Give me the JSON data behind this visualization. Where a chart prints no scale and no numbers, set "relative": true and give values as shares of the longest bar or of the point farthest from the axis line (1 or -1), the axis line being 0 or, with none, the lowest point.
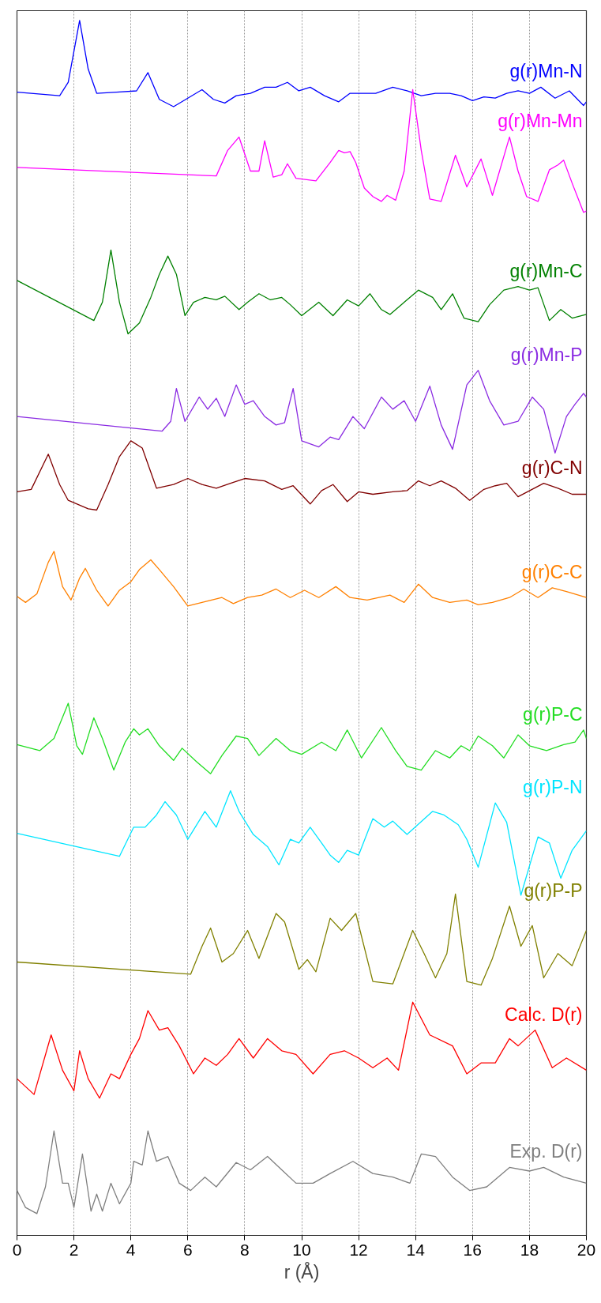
{
  "chart_data": {
    "type": "line",
    "relative": true,
    "xlabel": "r (Å)",
    "xlim": [
      0,
      20
    ],
    "xticks": [
      0,
      2,
      4,
      6,
      8,
      10,
      12,
      14,
      16,
      18,
      20
    ],
    "grid": "x",
    "line_style": "solid",
    "marker": "none",
    "series": [
      {
        "name": "g(r)Mn-N",
        "color": "#0000ff",
        "x": [
          0,
          1.5,
          1.8,
          2.2,
          2.5,
          2.8,
          3.5,
          4.2,
          4.6,
          5,
          5.5,
          6,
          6.5,
          6.9,
          7.3,
          7.7,
          8.2,
          8.7,
          9.1,
          9.5,
          9.9,
          10.3,
          10.8,
          11.3,
          11.7,
          12.2,
          12.6,
          13.2,
          13.7,
          14.2,
          14.7,
          15.2,
          15.6,
          16,
          16.4,
          16.8,
          17.2,
          17.6,
          18,
          18.4,
          18.9,
          19.4,
          19.9,
          20
        ],
        "values": [
          0.941,
          0.938,
          0.949,
          1.0,
          0.96,
          0.94,
          0.941,
          0.942,
          0.957,
          0.935,
          0.929,
          0.936,
          0.943,
          0.935,
          0.932,
          0.938,
          0.94,
          0.945,
          0.945,
          0.949,
          0.942,
          0.945,
          0.938,
          0.933,
          0.94,
          0.94,
          0.94,
          0.945,
          0.942,
          0.938,
          0.94,
          0.94,
          0.938,
          0.934,
          0.937,
          0.936,
          0.94,
          0.942,
          0.94,
          0.945,
          0.936,
          0.942,
          0.93,
          0.933
        ]
      },
      {
        "name": "g(r)Mn-Mn",
        "color": "#ff00ff",
        "x": [
          0,
          7,
          7.4,
          7.8,
          8.2,
          8.5,
          8.7,
          9,
          9.3,
          9.5,
          9.8,
          10.5,
          11,
          11.3,
          11.5,
          11.7,
          11.9,
          12.2,
          12.5,
          12.8,
          13,
          13.3,
          13.6,
          13.9,
          14.2,
          14.5,
          14.9,
          15.4,
          15.8,
          16.3,
          16.7,
          17.3,
          17.6,
          17.9,
          18.3,
          18.7,
          19,
          19.2,
          19.5,
          19.9,
          20
        ],
        "values": [
          0.879,
          0.872,
          0.893,
          0.904,
          0.876,
          0.876,
          0.901,
          0.871,
          0.873,
          0.882,
          0.87,
          0.868,
          0.883,
          0.893,
          0.891,
          0.892,
          0.883,
          0.862,
          0.855,
          0.851,
          0.856,
          0.852,
          0.876,
          0.943,
          0.893,
          0.853,
          0.851,
          0.889,
          0.863,
          0.886,
          0.856,
          0.904,
          0.876,
          0.855,
          0.851,
          0.877,
          0.881,
          0.885,
          0.866,
          0.842,
          0.843
        ]
      },
      {
        "name": "g(r)Mn-C",
        "color": "#008000",
        "x": [
          0,
          2.7,
          3.0,
          3.3,
          3.6,
          3.9,
          4.3,
          4.7,
          5,
          5.3,
          5.6,
          5.9,
          6.2,
          6.6,
          7,
          7.3,
          7.8,
          8.1,
          8.5,
          8.9,
          9.3,
          9.6,
          10,
          10.6,
          11.1,
          11.6,
          12,
          12.4,
          12.8,
          13.1,
          13.6,
          14.1,
          14.6,
          14.9,
          15.3,
          15.7,
          16.2,
          16.6,
          17.1,
          17.6,
          18,
          18.3,
          18.7,
          19.1,
          19.5,
          20
        ],
        "values": [
          0.786,
          0.753,
          0.768,
          0.811,
          0.768,
          0.742,
          0.751,
          0.772,
          0.791,
          0.806,
          0.791,
          0.757,
          0.768,
          0.772,
          0.77,
          0.773,
          0.762,
          0.768,
          0.775,
          0.77,
          0.772,
          0.766,
          0.757,
          0.768,
          0.757,
          0.77,
          0.765,
          0.775,
          0.762,
          0.758,
          0.768,
          0.778,
          0.772,
          0.762,
          0.775,
          0.755,
          0.752,
          0.766,
          0.778,
          0.781,
          0.778,
          0.78,
          0.753,
          0.762,
          0.755,
          0.758
        ]
      },
      {
        "name": "g(r)Mn-P",
        "color": "#8a2be2",
        "x": [
          0,
          5.1,
          5.4,
          5.6,
          5.9,
          6.4,
          6.7,
          7,
          7.3,
          7.7,
          8.0,
          8.3,
          8.7,
          9.1,
          9.4,
          9.7,
          10,
          10.6,
          11,
          11.3,
          11.8,
          12.2,
          12.8,
          13.2,
          13.6,
          14,
          14.5,
          14.9,
          15.3,
          15.8,
          16.2,
          16.6,
          17.1,
          17.6,
          18.1,
          18.5,
          18.9,
          19.3,
          19.6,
          19.9,
          20
        ],
        "values": [
          0.674,
          0.662,
          0.67,
          0.697,
          0.67,
          0.69,
          0.68,
          0.689,
          0.674,
          0.7,
          0.684,
          0.687,
          0.674,
          0.667,
          0.669,
          0.697,
          0.654,
          0.649,
          0.657,
          0.655,
          0.674,
          0.664,
          0.69,
          0.68,
          0.687,
          0.67,
          0.699,
          0.667,
          0.647,
          0.7,
          0.712,
          0.687,
          0.667,
          0.67,
          0.69,
          0.68,
          0.644,
          0.674,
          0.684,
          0.693,
          0.69
        ]
      },
      {
        "name": "g(r)C-N",
        "color": "#800000",
        "x": [
          0,
          0.5,
          1.1,
          1.5,
          1.8,
          2.5,
          2.8,
          3.2,
          3.6,
          4,
          4.4,
          4.9,
          5.5,
          6,
          6.5,
          7,
          7.5,
          8,
          8.7,
          9.3,
          9.7,
          10.3,
          10.7,
          11.1,
          11.6,
          12,
          12.5,
          13.2,
          13.7,
          14.1,
          14.5,
          14.9,
          15.4,
          15.9,
          16.4,
          16.8,
          17.2,
          17.6,
          18.5,
          19,
          19.5,
          20
        ],
        "values": [
          0.612,
          0.614,
          0.643,
          0.618,
          0.605,
          0.598,
          0.597,
          0.618,
          0.641,
          0.654,
          0.648,
          0.615,
          0.618,
          0.623,
          0.618,
          0.615,
          0.619,
          0.623,
          0.621,
          0.614,
          0.617,
          0.602,
          0.613,
          0.618,
          0.604,
          0.612,
          0.61,
          0.612,
          0.613,
          0.621,
          0.617,
          0.621,
          0.615,
          0.605,
          0.614,
          0.617,
          0.619,
          0.608,
          0.619,
          0.615,
          0.61,
          0.61
        ]
      },
      {
        "name": "g(r)C-C",
        "color": "#ff8000",
        "x": [
          0,
          0.3,
          0.7,
          1.1,
          1.3,
          1.6,
          1.9,
          2.2,
          2.4,
          2.8,
          3.2,
          3.6,
          4,
          4.3,
          4.7,
          5,
          5.5,
          6,
          6.5,
          7.2,
          7.6,
          8.1,
          8.6,
          9.1,
          9.6,
          10.1,
          10.6,
          11.2,
          11.7,
          12.3,
          13.1,
          13.6,
          14.1,
          14.6,
          15.2,
          15.8,
          16.2,
          16.7,
          17.3,
          17.8,
          18.3,
          18.8,
          19.3,
          20
        ],
        "values": [
          0.526,
          0.521,
          0.528,
          0.554,
          0.563,
          0.534,
          0.523,
          0.541,
          0.549,
          0.531,
          0.518,
          0.531,
          0.538,
          0.548,
          0.556,
          0.548,
          0.534,
          0.518,
          0.521,
          0.525,
          0.52,
          0.525,
          0.527,
          0.532,
          0.525,
          0.531,
          0.525,
          0.534,
          0.525,
          0.523,
          0.527,
          0.521,
          0.536,
          0.525,
          0.521,
          0.523,
          0.519,
          0.521,
          0.525,
          0.532,
          0.525,
          0.533,
          0.53,
          0.525
        ]
      },
      {
        "name": "g(r)P-C",
        "color": "#22dd22",
        "x": [
          0,
          0.8,
          1.3,
          1.8,
          2.1,
          2.3,
          2.7,
          3.0,
          3.4,
          3.8,
          4.1,
          4.3,
          4.6,
          5,
          5.5,
          5.8,
          6.3,
          6.8,
          7.2,
          7.7,
          8.1,
          8.5,
          9.1,
          9.6,
          10,
          10.7,
          11.2,
          11.6,
          12.1,
          12.8,
          13.3,
          13.7,
          14.2,
          14.7,
          15.2,
          15.6,
          15.9,
          16.2,
          16.7,
          17.1,
          17.6,
          18,
          18.6,
          19.2,
          19.6,
          19.9,
          20
        ],
        "values": [
          0.404,
          0.399,
          0.409,
          0.438,
          0.403,
          0.396,
          0.426,
          0.409,
          0.383,
          0.406,
          0.417,
          0.412,
          0.417,
          0.403,
          0.391,
          0.401,
          0.39,
          0.38,
          0.395,
          0.411,
          0.409,
          0.395,
          0.409,
          0.399,
          0.396,
          0.406,
          0.399,
          0.416,
          0.393,
          0.418,
          0.399,
          0.386,
          0.383,
          0.399,
          0.393,
          0.403,
          0.399,
          0.411,
          0.403,
          0.393,
          0.412,
          0.403,
          0.399,
          0.404,
          0.406,
          0.416,
          0.409
        ]
      },
      {
        "name": "g(r)P-N",
        "color": "#00e5ff",
        "x": [
          0,
          3.6,
          4.1,
          4.5,
          4.9,
          5.2,
          5.6,
          6,
          6.6,
          7,
          7.5,
          7.8,
          8.3,
          8.8,
          9.2,
          9.6,
          9.9,
          10.3,
          10.7,
          11,
          11.3,
          11.6,
          12,
          12.5,
          12.9,
          13.2,
          13.7,
          14.6,
          15,
          15.5,
          15.8,
          16.2,
          16.8,
          17.2,
          17.7,
          18.3,
          18.7,
          19.1,
          19.5,
          20
        ],
        "values": [
          0.331,
          0.312,
          0.336,
          0.336,
          0.346,
          0.357,
          0.346,
          0.326,
          0.349,
          0.336,
          0.366,
          0.349,
          0.33,
          0.32,
          0.305,
          0.326,
          0.323,
          0.336,
          0.323,
          0.313,
          0.307,
          0.317,
          0.313,
          0.343,
          0.336,
          0.341,
          0.33,
          0.349,
          0.346,
          0.338,
          0.326,
          0.303,
          0.356,
          0.34,
          0.28,
          0.328,
          0.323,
          0.294,
          0.317,
          0.333
        ]
      },
      {
        "name": "g(r)P-P",
        "color": "#808000",
        "x": [
          0,
          6.1,
          6.5,
          6.8,
          7.2,
          7.6,
          8.1,
          8.5,
          9.1,
          9.4,
          9.9,
          10.2,
          10.5,
          11,
          11.4,
          11.9,
          12.5,
          13.2,
          13.9,
          14.3,
          14.7,
          15.1,
          15.4,
          15.8,
          16.3,
          16.7,
          17.3,
          17.7,
          18.1,
          18.5,
          19,
          19.5,
          20
        ],
        "values": [
          0.225,
          0.215,
          0.238,
          0.253,
          0.225,
          0.232,
          0.251,
          0.228,
          0.265,
          0.258,
          0.219,
          0.227,
          0.217,
          0.261,
          0.251,
          0.265,
          0.209,
          0.207,
          0.251,
          0.232,
          0.212,
          0.232,
          0.281,
          0.209,
          0.206,
          0.228,
          0.271,
          0.238,
          0.255,
          0.212,
          0.232,
          0.222,
          0.251
        ]
      },
      {
        "name": "Calc. D(r)",
        "color": "#ff0000",
        "x": [
          0,
          0.6,
          1.2,
          1.6,
          2,
          2.2,
          2.5,
          2.9,
          3.3,
          3.6,
          4,
          4.3,
          4.6,
          5,
          5.3,
          5.7,
          6.2,
          6.6,
          7,
          7.4,
          7.8,
          8.3,
          8.8,
          9.3,
          9.8,
          10.4,
          11,
          11.5,
          12,
          12.5,
          13,
          13.4,
          13.9,
          14.5,
          15.3,
          15.8,
          16.3,
          16.8,
          17.3,
          17.6,
          18.2,
          18.8,
          19.3,
          20
        ],
        "values": [
          0.129,
          0.116,
          0.165,
          0.136,
          0.119,
          0.152,
          0.129,
          0.113,
          0.133,
          0.129,
          0.149,
          0.162,
          0.185,
          0.169,
          0.171,
          0.156,
          0.133,
          0.146,
          0.14,
          0.149,
          0.162,
          0.146,
          0.162,
          0.152,
          0.149,
          0.133,
          0.149,
          0.152,
          0.146,
          0.138,
          0.146,
          0.136,
          0.192,
          0.165,
          0.156,
          0.133,
          0.142,
          0.142,
          0.162,
          0.156,
          0.169,
          0.138,
          0.146,
          0.136
        ]
      },
      {
        "name": "Exp. D(r)",
        "color": "#7f7f7f",
        "x": [
          0,
          0.3,
          0.7,
          1,
          1.3,
          1.6,
          1.8,
          2,
          2.3,
          2.6,
          2.8,
          3,
          3.3,
          3.6,
          4,
          4.1,
          4.4,
          4.6,
          4.9,
          5.3,
          5.7,
          6.1,
          6.6,
          7,
          7.7,
          8.2,
          8.8,
          9.3,
          9.8,
          10.4,
          11,
          11.8,
          12.5,
          13.2,
          13.8,
          14.2,
          14.7,
          15.3,
          15.9,
          16.5,
          17.3,
          18,
          18.5,
          19.2,
          20
        ],
        "values": [
          0.037,
          0.023,
          0.018,
          0.04,
          0.086,
          0.043,
          0.043,
          0.023,
          0.067,
          0.02,
          0.034,
          0.02,
          0.043,
          0.026,
          0.043,
          0.061,
          0.058,
          0.086,
          0.061,
          0.065,
          0.043,
          0.037,
          0.048,
          0.04,
          0.06,
          0.054,
          0.065,
          0.054,
          0.043,
          0.043,
          0.051,
          0.061,
          0.051,
          0.048,
          0.043,
          0.067,
          0.065,
          0.048,
          0.037,
          0.04,
          0.056,
          0.053,
          0.056,
          0.048,
          0.043
        ]
      }
    ]
  }
}
